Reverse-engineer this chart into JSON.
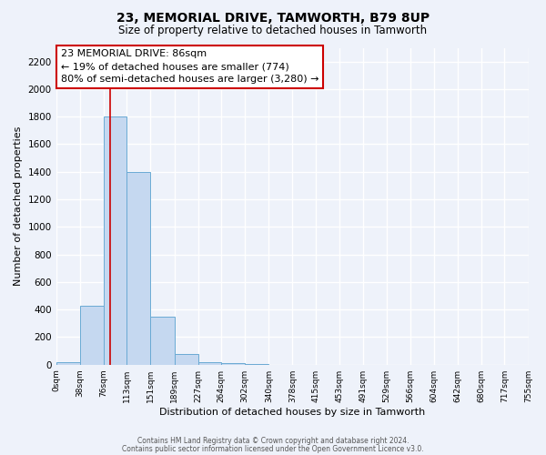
{
  "title": "23, MEMORIAL DRIVE, TAMWORTH, B79 8UP",
  "subtitle": "Size of property relative to detached houses in Tamworth",
  "xlabel": "Distribution of detached houses by size in Tamworth",
  "ylabel": "Number of detached properties",
  "bin_edges": [
    0,
    38,
    76,
    113,
    151,
    189,
    227,
    264,
    302,
    340,
    378,
    415,
    453,
    491,
    529,
    566,
    604,
    642,
    680,
    717,
    755
  ],
  "bar_heights": [
    20,
    430,
    1800,
    1400,
    350,
    75,
    20,
    10,
    5,
    0,
    0,
    0,
    0,
    0,
    0,
    0,
    0,
    0,
    0,
    0
  ],
  "bar_color": "#c5d8f0",
  "bar_edge_color": "#6aaad4",
  "red_line_x": 86,
  "red_line_color": "#cc0000",
  "annotation_line1": "23 MEMORIAL DRIVE: 86sqm",
  "annotation_line2": "← 19% of detached houses are smaller (774)",
  "annotation_line3": "80% of semi-detached houses are larger (3,280) →",
  "annotation_box_color": "#ffffff",
  "annotation_box_edge_color": "#cc0000",
  "ylim": [
    0,
    2300
  ],
  "yticks": [
    0,
    200,
    400,
    600,
    800,
    1000,
    1200,
    1400,
    1600,
    1800,
    2000,
    2200
  ],
  "tick_labels": [
    "0sqm",
    "38sqm",
    "76sqm",
    "113sqm",
    "151sqm",
    "189sqm",
    "227sqm",
    "264sqm",
    "302sqm",
    "340sqm",
    "378sqm",
    "415sqm",
    "453sqm",
    "491sqm",
    "529sqm",
    "566sqm",
    "604sqm",
    "642sqm",
    "680sqm",
    "717sqm",
    "755sqm"
  ],
  "footer_line1": "Contains HM Land Registry data © Crown copyright and database right 2024.",
  "footer_line2": "Contains public sector information licensed under the Open Government Licence v3.0.",
  "background_color": "#eef2fa",
  "grid_color": "#ffffff"
}
